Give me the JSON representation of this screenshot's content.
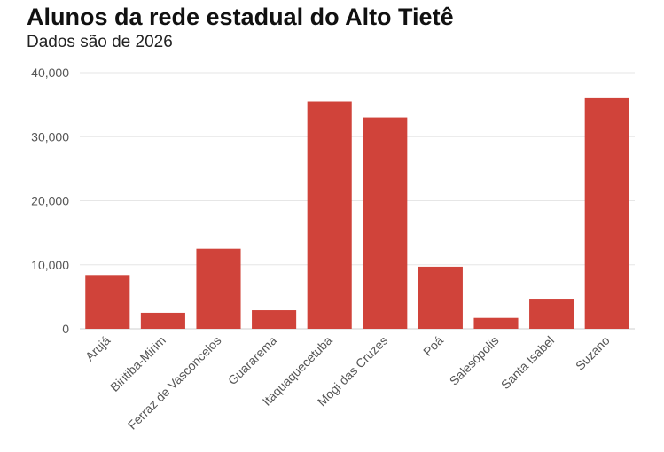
{
  "header": {
    "title": "Alunos da rede estadual do Alto Tietê",
    "subtitle": "Dados são de 2026"
  },
  "colors": {
    "bar": "#d0433a",
    "grid": "#e6e6e6",
    "axis": "#555555"
  },
  "chart_data": {
    "type": "bar",
    "title": "Alunos da rede estadual do Alto Tietê",
    "subtitle": "Dados são de 2026",
    "xlabel": "",
    "ylabel": "",
    "categories": [
      "Arujá",
      "Biritiba-Mirim",
      "Ferraz de Vasconcelos",
      "Guararema",
      "Itaquaquecetuba",
      "Mogi das Cruzes",
      "Poá",
      "Salesópolis",
      "Santa Isabel",
      "Suzano"
    ],
    "values": [
      8400,
      2500,
      12500,
      2900,
      35500,
      33000,
      9700,
      1700,
      4700,
      36000
    ],
    "ylim": [
      0,
      40000
    ],
    "yticks": [
      0,
      10000,
      20000,
      30000,
      40000
    ],
    "ytick_labels": [
      "0",
      "10,000",
      "20,000",
      "30,000",
      "40,000"
    ],
    "grid": true,
    "legend": "none"
  }
}
